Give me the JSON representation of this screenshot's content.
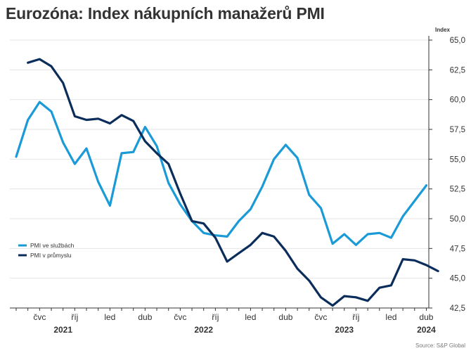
{
  "title": "Eurozóna: Index nákupních manažerů PMI",
  "source": "Source: S&P Global",
  "colors": {
    "services": "#1a9ad6",
    "manufacturing": "#0b2d5b",
    "grid": "#e4e4e4",
    "axis": "#333333"
  },
  "chart_data": {
    "type": "line",
    "y_axis_title": "Index",
    "ylim": [
      42.5,
      65.0
    ],
    "yticks": [
      42.5,
      45.0,
      47.5,
      50.0,
      52.5,
      55.0,
      57.5,
      60.0,
      62.5,
      65.0
    ],
    "ytick_labels": [
      "42,5",
      "45,0",
      "47,5",
      "50,0",
      "52,5",
      "55,0",
      "57,5",
      "60,0",
      "62,5",
      "65,0"
    ],
    "y_axis_position": "right",
    "grid": true,
    "x": [
      "2021-04",
      "2021-05",
      "2021-06",
      "2021-07",
      "2021-08",
      "2021-09",
      "2021-10",
      "2021-11",
      "2021-12",
      "2022-01",
      "2022-02",
      "2022-03",
      "2022-04",
      "2022-05",
      "2022-06",
      "2022-07",
      "2022-08",
      "2022-09",
      "2022-10",
      "2022-11",
      "2022-12",
      "2023-01",
      "2023-02",
      "2023-03",
      "2023-04",
      "2023-05",
      "2023-06",
      "2023-07",
      "2023-08",
      "2023-09",
      "2023-10",
      "2023-11",
      "2023-12",
      "2024-01",
      "2024-02",
      "2024-03",
      "2024-04",
      "2024-05",
      "2024-06"
    ],
    "x_tick_labels": [
      {
        "x": "2021-06",
        "label": "čvc"
      },
      {
        "x": "2021-09",
        "label": "říj"
      },
      {
        "x": "2021-12",
        "label": "led"
      },
      {
        "x": "2022-03",
        "label": "dub"
      },
      {
        "x": "2022-06",
        "label": "čvc"
      },
      {
        "x": "2022-09",
        "label": "říj"
      },
      {
        "x": "2022-12",
        "label": "led"
      },
      {
        "x": "2023-03",
        "label": "dub"
      },
      {
        "x": "2023-06",
        "label": "čvc"
      },
      {
        "x": "2023-09",
        "label": "říj"
      },
      {
        "x": "2023-12",
        "label": "led"
      },
      {
        "x": "2024-03",
        "label": "dub"
      }
    ],
    "year_labels": [
      {
        "x": "2021-08",
        "label": "2021"
      },
      {
        "x": "2022-08",
        "label": "2022"
      },
      {
        "x": "2023-08",
        "label": "2023"
      },
      {
        "x": "2024-03",
        "label": "2024"
      }
    ],
    "legend_position": "bottom-left",
    "series": [
      {
        "name": "PMI ve službách",
        "color": "#1a9ad6",
        "values": [
          55.2,
          58.3,
          59.8,
          59.0,
          56.4,
          54.6,
          55.9,
          53.1,
          51.1,
          55.5,
          55.6,
          57.7,
          56.1,
          53.0,
          51.2,
          49.8,
          48.8,
          48.6,
          48.5,
          49.8,
          50.8,
          52.7,
          55.0,
          56.2,
          55.1,
          52.0,
          50.9,
          47.9,
          48.7,
          47.8,
          48.7,
          48.8,
          48.4,
          50.2,
          51.5,
          52.8,
          null,
          null,
          null
        ]
      },
      {
        "name": "PMI v průmyslu",
        "color": "#0b2d5b",
        "values": [
          null,
          63.1,
          63.4,
          62.8,
          61.4,
          58.6,
          58.3,
          58.4,
          58.0,
          58.7,
          58.2,
          56.5,
          55.5,
          54.6,
          52.1,
          49.8,
          49.6,
          48.4,
          46.4,
          47.1,
          47.8,
          48.8,
          48.5,
          47.3,
          45.8,
          44.8,
          43.4,
          42.7,
          43.5,
          43.4,
          43.1,
          44.2,
          44.4,
          46.6,
          46.5,
          46.1,
          45.6,
          null,
          null
        ]
      }
    ]
  }
}
